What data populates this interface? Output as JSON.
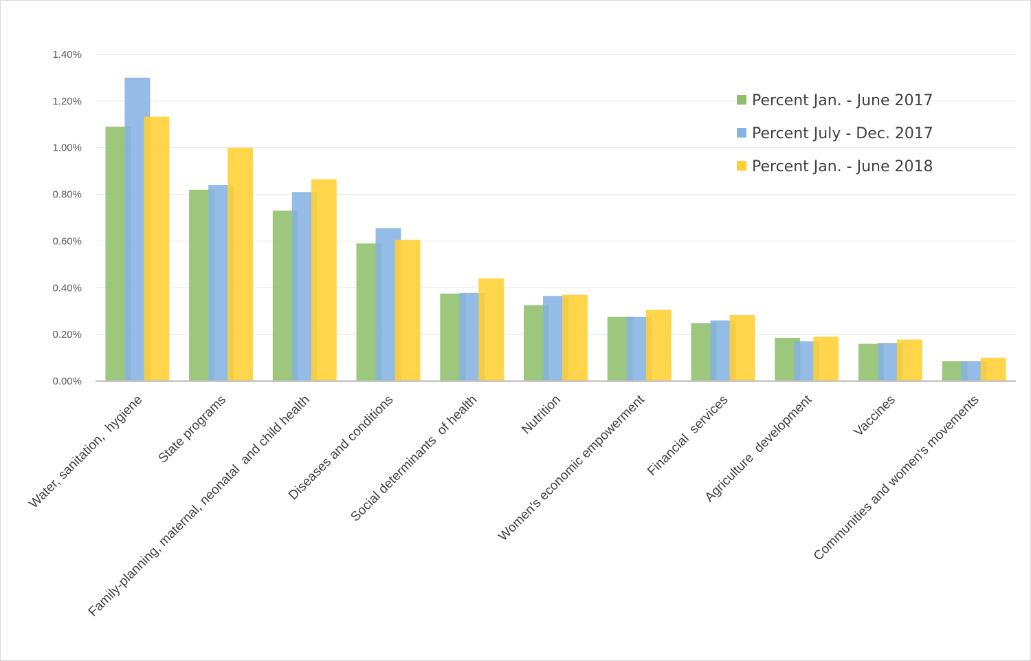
{
  "chart_data": {
    "type": "bar",
    "title": "",
    "xlabel": "",
    "ylabel": "",
    "ylim": [
      0,
      0.014
    ],
    "y_tick_values": [
      0,
      0.002,
      0.004,
      0.006,
      0.008,
      0.01,
      0.012,
      0.014
    ],
    "y_tick_labels": [
      "0.00%",
      "0.20%",
      "0.40%",
      "0.60%",
      "0.80%",
      "1.00%",
      "1.20%",
      "1.40%"
    ],
    "grid": true,
    "legend_position": "top-right",
    "categories": [
      "Water, sanitation,  hygiene",
      "State programs",
      "Family-planning, maternal, neonatal  and child health",
      "Diseases and conditions",
      "Social determinants  of health",
      "Nutrition",
      "Women's economic empowerment",
      "Financial  services",
      "Agriculture  development",
      "Vaccines",
      "Communities and women's movements"
    ],
    "series": [
      {
        "name": "Percent Jan. - June 2017",
        "color": "#8fbf6a",
        "values": [
          0.0109,
          0.0082,
          0.0073,
          0.0059,
          0.00375,
          0.00325,
          0.00275,
          0.00248,
          0.00185,
          0.0016,
          0.00085
        ]
      },
      {
        "name": "Percent July - Dec. 2017",
        "color": "#85b3e3",
        "values": [
          0.013,
          0.0084,
          0.0081,
          0.00655,
          0.00378,
          0.00365,
          0.00275,
          0.0026,
          0.0017,
          0.00162,
          0.00085
        ]
      },
      {
        "name": "Percent Jan. - June 2018",
        "color": "#ffd032",
        "values": [
          0.01133,
          0.01,
          0.00865,
          0.00605,
          0.0044,
          0.0037,
          0.00305,
          0.00283,
          0.0019,
          0.00178,
          0.001
        ]
      }
    ]
  }
}
